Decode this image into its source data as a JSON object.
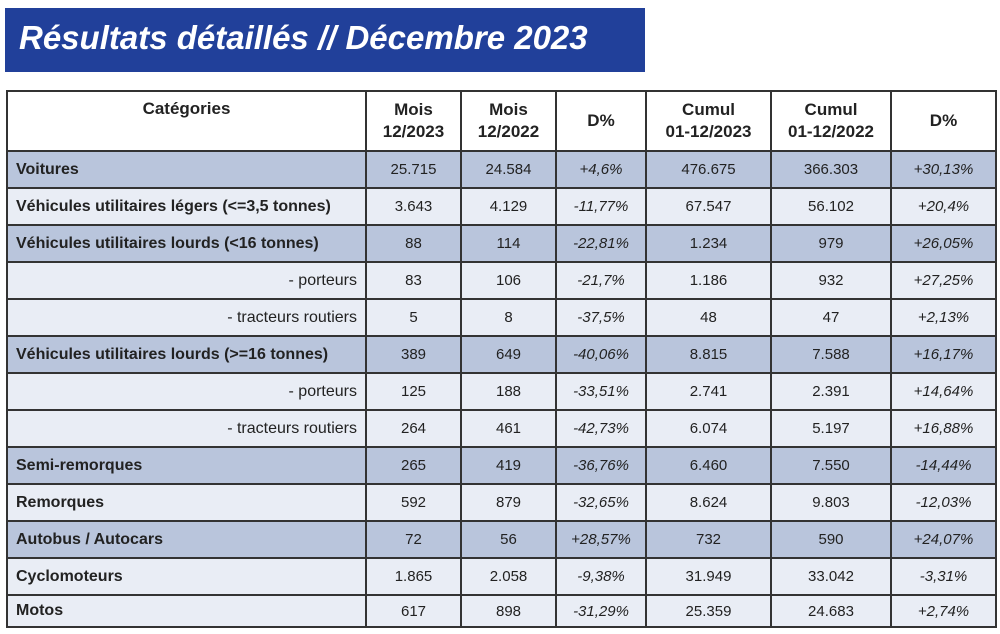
{
  "title": "Résultats détaillés // Décembre 2023",
  "colors": {
    "banner": "#21409a",
    "row_dark": "#b9c5dc",
    "row_light": "#e9edf5"
  },
  "headers": [
    "Catégories",
    "Mois\n12/2023",
    "Mois\n12/2022",
    "D%",
    "Cumul\n01-12/2023",
    "Cumul\n01-12/2022",
    "D%"
  ],
  "rows": [
    {
      "label": "Voitures",
      "style": "dark",
      "values": [
        "25.715",
        "24.584",
        "+4,6%",
        "476.675",
        "366.303",
        "+30,13%"
      ]
    },
    {
      "label": "Véhicules utilitaires légers (<=3,5 tonnes)",
      "style": "light",
      "values": [
        "3.643",
        "4.129",
        "-11,77%",
        "67.547",
        "56.102",
        "+20,4%"
      ]
    },
    {
      "label": "Véhicules utilitaires lourds (<16 tonnes)",
      "style": "dark",
      "values": [
        "88",
        "114",
        "-22,81%",
        "1.234",
        "979",
        "+26,05%"
      ]
    },
    {
      "label": "- porteurs",
      "style": "light",
      "sub": true,
      "values": [
        "83",
        "106",
        "-21,7%",
        "1.186",
        "932",
        "+27,25%"
      ]
    },
    {
      "label": "- tracteurs routiers",
      "style": "light",
      "sub": true,
      "values": [
        "5",
        "8",
        "-37,5%",
        "48",
        "47",
        "+2,13%"
      ]
    },
    {
      "label": "Véhicules utilitaires lourds (>=16 tonnes)",
      "style": "dark",
      "values": [
        "389",
        "649",
        "-40,06%",
        "8.815",
        "7.588",
        "+16,17%"
      ]
    },
    {
      "label": "- porteurs",
      "style": "light",
      "sub": true,
      "values": [
        "125",
        "188",
        "-33,51%",
        "2.741",
        "2.391",
        "+14,64%"
      ]
    },
    {
      "label": "- tracteurs routiers",
      "style": "light",
      "sub": true,
      "values": [
        "264",
        "461",
        "-42,73%",
        "6.074",
        "5.197",
        "+16,88%"
      ]
    },
    {
      "label": "Semi-remorques",
      "style": "dark",
      "values": [
        "265",
        "419",
        "-36,76%",
        "6.460",
        "7.550",
        "-14,44%"
      ]
    },
    {
      "label": "Remorques",
      "style": "light",
      "values": [
        "592",
        "879",
        "-32,65%",
        "8.624",
        "9.803",
        "-12,03%"
      ]
    },
    {
      "label": "Autobus / Autocars",
      "style": "dark",
      "values": [
        "72",
        "56",
        "+28,57%",
        "732",
        "590",
        "+24,07%"
      ]
    },
    {
      "label": "Cyclomoteurs",
      "style": "light",
      "values": [
        "1.865",
        "2.058",
        "-9,38%",
        "31.949",
        "33.042",
        "-3,31%"
      ]
    },
    {
      "label": "Motos",
      "style": "light",
      "values": [
        "617",
        "898",
        "-31,29%",
        "25.359",
        "24.683",
        "+2,74%"
      ]
    }
  ]
}
